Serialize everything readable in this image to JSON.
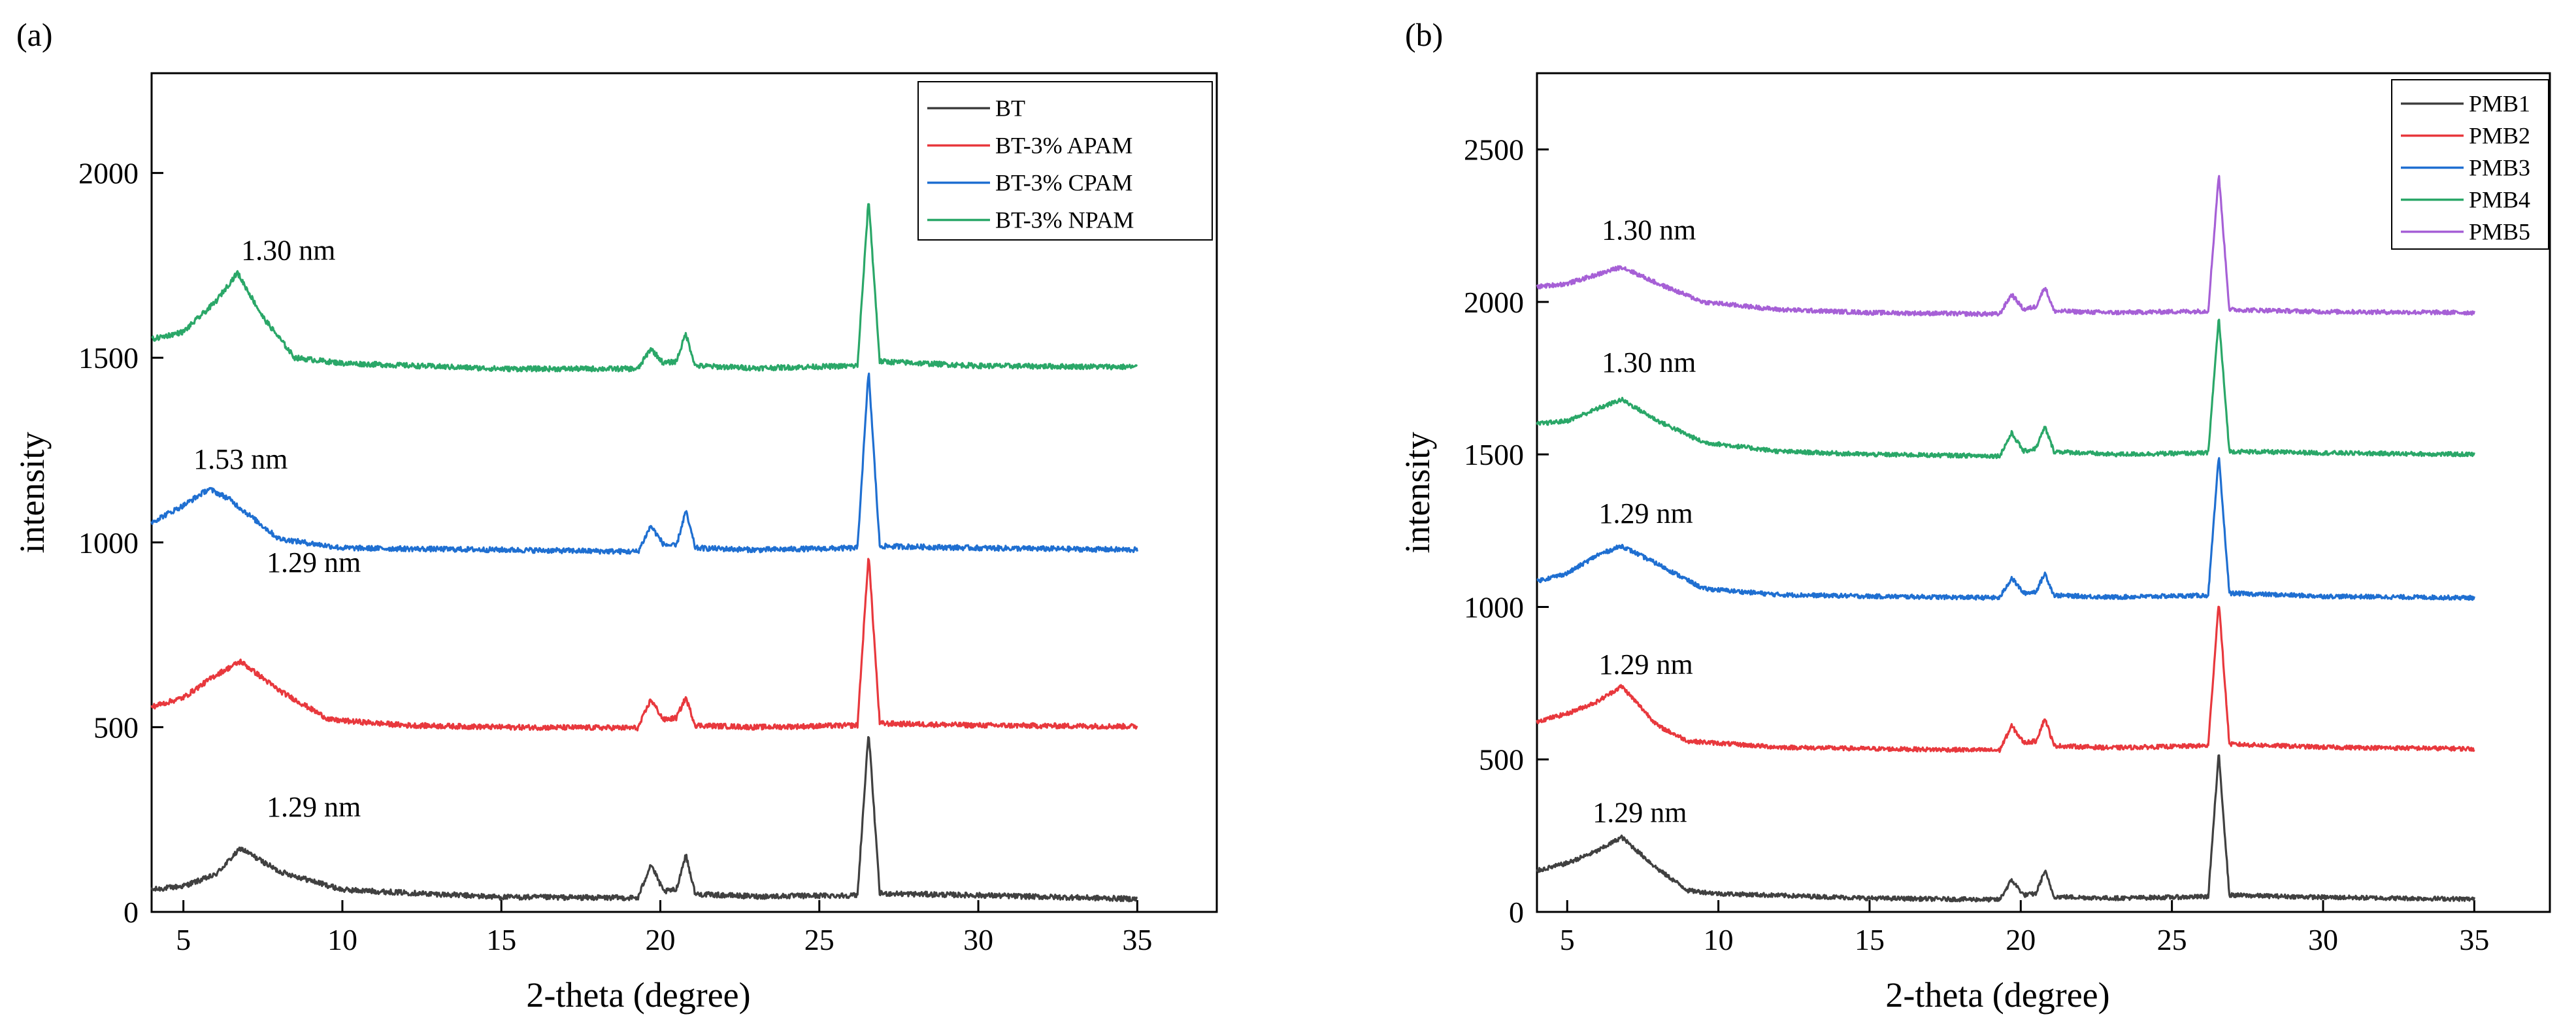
{
  "chart_data": [
    {
      "type": "line",
      "panel_label": "(a)",
      "xlabel": "2-theta (degree)",
      "ylabel": "intensity",
      "xlim": [
        4,
        37.5
      ],
      "ylim": [
        0,
        2270
      ],
      "xticks": [
        5,
        10,
        15,
        20,
        25,
        30,
        35
      ],
      "yticks": [
        0,
        500,
        1000,
        1500,
        2000
      ],
      "legend": [
        "BT",
        "BT-3% APAM",
        "BT-3% CPAM",
        "BT-3% NPAM"
      ],
      "legend_position": "top-right",
      "series": [
        {
          "name": "BT",
          "color": "#404040",
          "baseline": 38,
          "points": [
            [
              4,
              60
            ],
            [
              5,
              70
            ],
            [
              6,
              100
            ],
            [
              6.8,
              172
            ],
            [
              8,
              110
            ],
            [
              10,
              60
            ],
            [
              15,
              40
            ],
            [
              19.3,
              38
            ],
            [
              19.7,
              130
            ],
            [
              20.1,
              55
            ],
            [
              20.5,
              60
            ],
            [
              20.8,
              155
            ],
            [
              21.1,
              48
            ],
            [
              23,
              42
            ],
            [
              26.2,
              45
            ],
            [
              26.55,
              490
            ],
            [
              26.9,
              50
            ],
            [
              30,
              45
            ],
            [
              35,
              35
            ]
          ]
        },
        {
          "name": "BT-3% APAM",
          "color": "#e8383d",
          "baseline": 500,
          "points": [
            [
              4,
              555
            ],
            [
              5,
              580
            ],
            [
              6,
              640
            ],
            [
              6.8,
              678
            ],
            [
              8,
              600
            ],
            [
              9.6,
              520
            ],
            [
              12,
              505
            ],
            [
              15,
              500
            ],
            [
              19.3,
              498
            ],
            [
              19.7,
              575
            ],
            [
              20.1,
              520
            ],
            [
              20.5,
              525
            ],
            [
              20.8,
              580
            ],
            [
              21.1,
              505
            ],
            [
              23,
              500
            ],
            [
              26.2,
              505
            ],
            [
              26.55,
              970
            ],
            [
              26.9,
              510
            ],
            [
              30,
              505
            ],
            [
              35,
              502
            ]
          ]
        },
        {
          "name": "BT-3% CPAM",
          "color": "#1f6fd1",
          "baseline": 978,
          "points": [
            [
              4,
              1055
            ],
            [
              5,
              1100
            ],
            [
              5.8,
              1145
            ],
            [
              6.4,
              1120
            ],
            [
              8,
              1010
            ],
            [
              10,
              985
            ],
            [
              15,
              980
            ],
            [
              19.3,
              975
            ],
            [
              19.7,
              1045
            ],
            [
              20.1,
              995
            ],
            [
              20.5,
              990
            ],
            [
              20.8,
              1085
            ],
            [
              21.1,
              985
            ],
            [
              23,
              980
            ],
            [
              26.2,
              985
            ],
            [
              26.55,
              1465
            ],
            [
              26.9,
              990
            ],
            [
              30,
              985
            ],
            [
              35,
              980
            ]
          ]
        },
        {
          "name": "BT-3% NPAM",
          "color": "#2aa768",
          "baseline": 1472,
          "points": [
            [
              4,
              1550
            ],
            [
              5,
              1570
            ],
            [
              6,
              1650
            ],
            [
              6.7,
              1730
            ],
            [
              7.5,
              1610
            ],
            [
              8.5,
              1500
            ],
            [
              10,
              1485
            ],
            [
              15,
              1470
            ],
            [
              19.3,
              1470
            ],
            [
              19.7,
              1525
            ],
            [
              20.1,
              1485
            ],
            [
              20.5,
              1490
            ],
            [
              20.8,
              1565
            ],
            [
              21.1,
              1478
            ],
            [
              23,
              1472
            ],
            [
              26.2,
              1478
            ],
            [
              26.55,
              1930
            ],
            [
              26.9,
              1490
            ],
            [
              30,
              1478
            ],
            [
              35,
              1475
            ]
          ]
        }
      ],
      "annotations": [
        {
          "text": "1.30 nm",
          "x": 8.3,
          "y": 1765
        },
        {
          "text": "1.53 nm",
          "x": 6.8,
          "y": 1200
        },
        {
          "text": "1.29 nm",
          "x": 9.1,
          "y": 920
        },
        {
          "text": "1.29 nm",
          "x": 9.1,
          "y": 258
        }
      ]
    },
    {
      "type": "line",
      "panel_label": "(b)",
      "xlabel": "2-theta (degree)",
      "ylabel": "intensity",
      "xlim": [
        4,
        37.5
      ],
      "ylim": [
        0,
        2750
      ],
      "xticks": [
        5,
        10,
        15,
        20,
        25,
        30,
        35
      ],
      "yticks": [
        0,
        500,
        1000,
        1500,
        2000,
        2500
      ],
      "legend": [
        "PMB1",
        "PMB2",
        "PMB3",
        "PMB4",
        "PMB5"
      ],
      "legend_position": "top-right",
      "series": [
        {
          "name": "PMB1",
          "color": "#404040",
          "baseline": 40,
          "points": [
            [
              4,
              135
            ],
            [
              5,
              160
            ],
            [
              6,
              200
            ],
            [
              6.8,
              245
            ],
            [
              8,
              140
            ],
            [
              9,
              70
            ],
            [
              10,
              60
            ],
            [
              15,
              45
            ],
            [
              19.3,
              40
            ],
            [
              19.7,
              105
            ],
            [
              20.1,
              55
            ],
            [
              20.5,
              60
            ],
            [
              20.8,
              135
            ],
            [
              21.1,
              50
            ],
            [
              23,
              45
            ],
            [
              26.2,
              50
            ],
            [
              26.55,
              520
            ],
            [
              26.9,
              55
            ],
            [
              30,
              48
            ],
            [
              35,
              42
            ]
          ]
        },
        {
          "name": "PMB2",
          "color": "#e8383d",
          "baseline": 535,
          "points": [
            [
              4,
              625
            ],
            [
              5,
              650
            ],
            [
              6,
              690
            ],
            [
              6.8,
              740
            ],
            [
              8,
              610
            ],
            [
              9,
              560
            ],
            [
              12,
              540
            ],
            [
              15,
              535
            ],
            [
              19.3,
              530
            ],
            [
              19.7,
              610
            ],
            [
              20.1,
              555
            ],
            [
              20.5,
              560
            ],
            [
              20.8,
              635
            ],
            [
              21.1,
              545
            ],
            [
              23,
              538
            ],
            [
              26.2,
              545
            ],
            [
              26.55,
              1020
            ],
            [
              26.9,
              550
            ],
            [
              30,
              540
            ],
            [
              35,
              535
            ]
          ]
        },
        {
          "name": "PMB3",
          "color": "#1f6fd1",
          "baseline": 1030,
          "points": [
            [
              4,
              1085
            ],
            [
              5,
              1110
            ],
            [
              6,
              1170
            ],
            [
              6.8,
              1200
            ],
            [
              8,
              1140
            ],
            [
              9.5,
              1060
            ],
            [
              12,
              1040
            ],
            [
              15,
              1035
            ],
            [
              19.3,
              1030
            ],
            [
              19.7,
              1095
            ],
            [
              20.1,
              1045
            ],
            [
              20.5,
              1050
            ],
            [
              20.8,
              1110
            ],
            [
              21.1,
              1038
            ],
            [
              23,
              1032
            ],
            [
              26.2,
              1038
            ],
            [
              26.55,
              1495
            ],
            [
              26.9,
              1045
            ],
            [
              30,
              1035
            ],
            [
              35,
              1030
            ]
          ]
        },
        {
          "name": "PMB4",
          "color": "#2aa768",
          "baseline": 1500,
          "points": [
            [
              4,
              1600
            ],
            [
              5,
              1610
            ],
            [
              6,
              1650
            ],
            [
              6.8,
              1680
            ],
            [
              8,
              1610
            ],
            [
              9.5,
              1540
            ],
            [
              12,
              1510
            ],
            [
              15,
              1500
            ],
            [
              19.3,
              1495
            ],
            [
              19.7,
              1570
            ],
            [
              20.1,
              1510
            ],
            [
              20.5,
              1520
            ],
            [
              20.8,
              1590
            ],
            [
              21.1,
              1510
            ],
            [
              23,
              1500
            ],
            [
              26.2,
              1505
            ],
            [
              26.55,
              1950
            ],
            [
              26.9,
              1510
            ],
            [
              30,
              1505
            ],
            [
              35,
              1500
            ]
          ]
        },
        {
          "name": "PMB5",
          "color": "#a660d6",
          "baseline": 1965,
          "points": [
            [
              4,
              2050
            ],
            [
              5,
              2060
            ],
            [
              6,
              2090
            ],
            [
              6.8,
              2115
            ],
            [
              8,
              2060
            ],
            [
              9.5,
              2000
            ],
            [
              12,
              1975
            ],
            [
              15,
              1965
            ],
            [
              19.3,
              1960
            ],
            [
              19.7,
              2025
            ],
            [
              20.1,
              1975
            ],
            [
              20.5,
              1985
            ],
            [
              20.8,
              2050
            ],
            [
              21.1,
              1970
            ],
            [
              23,
              1965
            ],
            [
              26.2,
              1970
            ],
            [
              26.55,
              2420
            ],
            [
              26.9,
              1975
            ],
            [
              30,
              1968
            ],
            [
              35,
              1965
            ]
          ]
        }
      ],
      "annotations": [
        {
          "text": "1.30 nm",
          "x": 7.7,
          "y": 2205
        },
        {
          "text": "1.30 nm",
          "x": 7.7,
          "y": 1770
        },
        {
          "text": "1.29 nm",
          "x": 7.6,
          "y": 1275
        },
        {
          "text": "1.29 nm",
          "x": 7.6,
          "y": 780
        },
        {
          "text": "1.29 nm",
          "x": 7.4,
          "y": 295
        }
      ]
    }
  ]
}
